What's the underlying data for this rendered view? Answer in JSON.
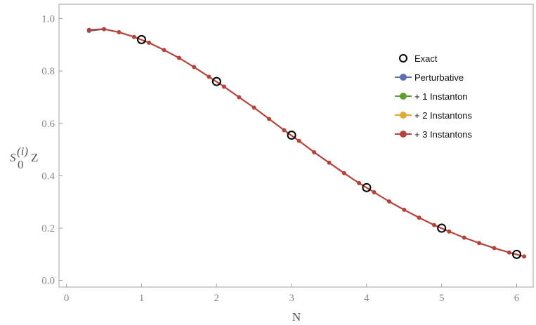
{
  "chart_data": {
    "type": "line",
    "xlabel": "N",
    "ylabel": {
      "base": "S",
      "sub": "0",
      "sup": "(i)",
      "suffix": "Z"
    },
    "xlim": [
      -0.1,
      6.22
    ],
    "ylim": [
      -0.025,
      1.055
    ],
    "x_ticks": [
      0,
      1,
      2,
      3,
      4,
      5,
      6
    ],
    "y_ticks": [
      0.0,
      0.2,
      0.4,
      0.6,
      0.8,
      1.0
    ],
    "x_tick_labels": [
      "0",
      "1",
      "2",
      "3",
      "4",
      "5",
      "6"
    ],
    "y_tick_labels": [
      "0.0",
      "0.2",
      "0.4",
      "0.6",
      "0.8",
      "1.0"
    ],
    "grid": false,
    "legend_position": "right",
    "series": [
      {
        "name": "Exact",
        "style": "open-circle",
        "color": "#000000",
        "points": [
          [
            1,
            0.92
          ],
          [
            2,
            0.76
          ],
          [
            3,
            0.555
          ],
          [
            4,
            0.355
          ],
          [
            5,
            0.2
          ],
          [
            6,
            0.1
          ]
        ]
      },
      {
        "name": "Perturbative",
        "style": "line-points",
        "color": "#5b6fb6",
        "points": [
          [
            0.3,
            0.953
          ],
          [
            0.5,
            0.96
          ]
        ]
      },
      {
        "name": "+ 1 Instanton",
        "style": "line-points",
        "color": "#5ea02a",
        "points": []
      },
      {
        "name": "+ 2 Instantons",
        "style": "line-points",
        "color": "#e3a937",
        "points": []
      },
      {
        "name": "+ 3 Instantons",
        "style": "line-points",
        "color": "#b5433a",
        "points": [
          [
            0.3,
            0.957
          ],
          [
            0.5,
            0.96
          ],
          [
            0.7,
            0.948
          ],
          [
            0.9,
            0.93
          ],
          [
            1.1,
            0.908
          ],
          [
            1.3,
            0.88
          ],
          [
            1.5,
            0.85
          ],
          [
            1.7,
            0.815
          ],
          [
            1.9,
            0.778
          ],
          [
            2.1,
            0.74
          ],
          [
            2.3,
            0.7
          ],
          [
            2.5,
            0.66
          ],
          [
            2.7,
            0.617
          ],
          [
            2.9,
            0.574
          ],
          [
            3.1,
            0.533
          ],
          [
            3.3,
            0.49
          ],
          [
            3.5,
            0.45
          ],
          [
            3.7,
            0.41
          ],
          [
            3.9,
            0.372
          ],
          [
            4.1,
            0.337
          ],
          [
            4.3,
            0.302
          ],
          [
            4.5,
            0.27
          ],
          [
            4.7,
            0.24
          ],
          [
            4.9,
            0.212
          ],
          [
            5.1,
            0.187
          ],
          [
            5.3,
            0.164
          ],
          [
            5.5,
            0.143
          ],
          [
            5.7,
            0.124
          ],
          [
            5.9,
            0.107
          ],
          [
            6.1,
            0.092
          ]
        ]
      }
    ]
  }
}
